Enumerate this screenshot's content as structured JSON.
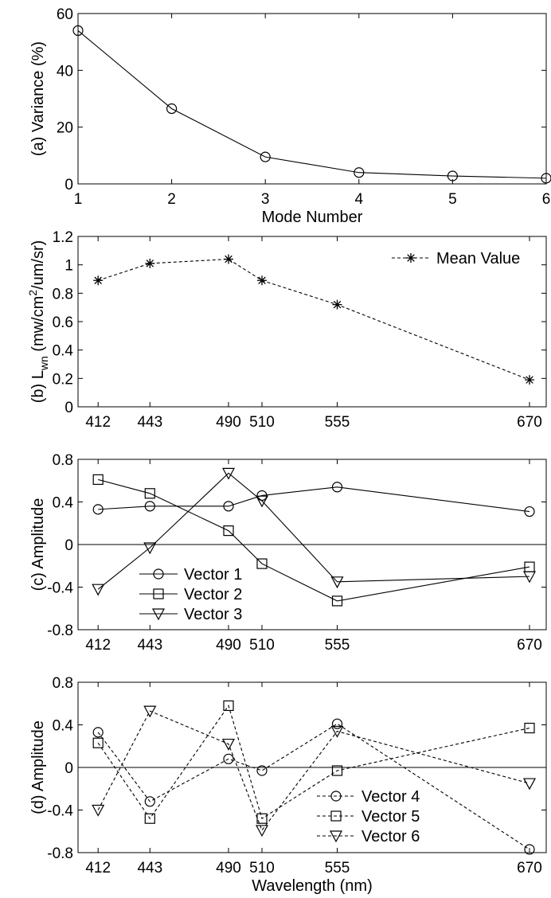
{
  "chart_data": [
    {
      "id": "a",
      "type": "line",
      "ylabel": "(a) Variance (%)",
      "xlabel": "Mode Number",
      "xlim": [
        1,
        6
      ],
      "ylim": [
        0,
        60
      ],
      "xticks": [
        1,
        2,
        3,
        4,
        5,
        6
      ],
      "yticks": [
        0,
        20,
        40,
        60
      ],
      "series": [
        {
          "name": "",
          "line": "solid",
          "marker": "circle",
          "x": [
            1,
            2,
            3,
            4,
            5,
            6
          ],
          "y": [
            54,
            26.5,
            9.5,
            4,
            2.8,
            2
          ]
        }
      ]
    },
    {
      "id": "b",
      "type": "line",
      "ylabel_main": "(b) L",
      "ylabel_sub": "wn",
      "ylabel_unit": " (mw/cm",
      "ylabel_sup": "2",
      "ylabel_tail": "/um/sr)",
      "xlabel": "",
      "xlim": [
        400,
        680
      ],
      "ylim": [
        0,
        1.2
      ],
      "xticks": [
        412,
        443,
        490,
        510,
        555,
        670
      ],
      "yticks": [
        "0",
        "0.2",
        "0.4",
        "0.6",
        "0.8",
        "1",
        "1.2"
      ],
      "legend_position": "top-right",
      "series": [
        {
          "name": "Mean Value",
          "line": "dashed",
          "marker": "star",
          "x": [
            412,
            443,
            490,
            510,
            555,
            670
          ],
          "y": [
            0.89,
            1.01,
            1.04,
            0.89,
            0.72,
            0.19
          ]
        }
      ]
    },
    {
      "id": "c",
      "type": "line",
      "ylabel": "(c) Amplitude",
      "xlabel": "",
      "xlim": [
        400,
        680
      ],
      "ylim": [
        -0.8,
        0.8
      ],
      "xticks": [
        412,
        443,
        490,
        510,
        555,
        670
      ],
      "yticks": [
        "-0.8",
        "-0.4",
        "0",
        "0.4",
        "0.8"
      ],
      "zero_line": true,
      "legend_position": "lower-left",
      "series": [
        {
          "name": "Vector 1",
          "line": "solid",
          "marker": "circle",
          "x": [
            412,
            443,
            490,
            510,
            555,
            670
          ],
          "y": [
            0.33,
            0.36,
            0.36,
            0.46,
            0.54,
            0.31
          ]
        },
        {
          "name": "Vector 2",
          "line": "solid",
          "marker": "square",
          "x": [
            412,
            443,
            490,
            510,
            555,
            670
          ],
          "y": [
            0.61,
            0.48,
            0.13,
            -0.18,
            -0.53,
            -0.21
          ]
        },
        {
          "name": "Vector 3",
          "line": "solid",
          "marker": "triangle-down",
          "x": [
            412,
            443,
            490,
            510,
            555,
            670
          ],
          "y": [
            -0.42,
            -0.03,
            0.67,
            0.41,
            -0.35,
            -0.3
          ]
        }
      ]
    },
    {
      "id": "d",
      "type": "line",
      "ylabel": "(d) Amplitude",
      "xlabel": "Wavelength (nm)",
      "xlim": [
        400,
        680
      ],
      "ylim": [
        -0.8,
        0.8
      ],
      "xticks": [
        412,
        443,
        490,
        510,
        555,
        670
      ],
      "yticks": [
        "-0.8",
        "-0.4",
        "0",
        "0.4",
        "0.8"
      ],
      "zero_line": true,
      "legend_position": "lower-right",
      "series": [
        {
          "name": "Vector 4",
          "line": "dashed",
          "marker": "circle",
          "x": [
            412,
            443,
            490,
            510,
            555,
            670
          ],
          "y": [
            0.33,
            -0.32,
            0.08,
            -0.03,
            0.41,
            -0.77
          ]
        },
        {
          "name": "Vector 5",
          "line": "dashed",
          "marker": "square",
          "x": [
            412,
            443,
            490,
            510,
            555,
            670
          ],
          "y": [
            0.23,
            -0.48,
            0.58,
            -0.48,
            -0.03,
            0.37
          ]
        },
        {
          "name": "Vector 6",
          "line": "dashed",
          "marker": "triangle-down",
          "x": [
            412,
            443,
            490,
            510,
            555,
            670
          ],
          "y": [
            -0.4,
            0.53,
            0.22,
            -0.59,
            0.34,
            -0.15
          ]
        }
      ]
    }
  ]
}
